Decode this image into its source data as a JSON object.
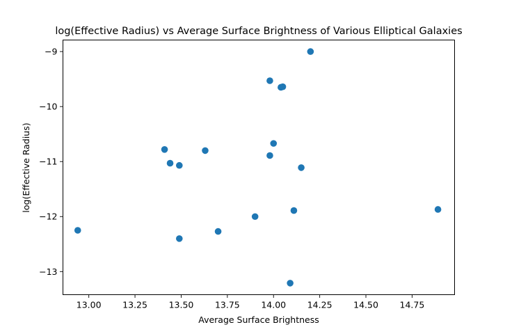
{
  "chart_data": {
    "type": "scatter",
    "title": "log(Effective Radius) vs Average Surface Brightness of Various Elliptical Galaxies",
    "xlabel": "Average Surface Brightness",
    "ylabel": "log(Effective Radius)",
    "xlim": [
      12.86,
      14.98
    ],
    "ylim": [
      -13.42,
      -8.79
    ],
    "xticks": [
      13.0,
      13.25,
      13.5,
      13.75,
      14.0,
      14.25,
      14.5,
      14.75
    ],
    "xtick_labels": [
      "13.00",
      "13.25",
      "13.50",
      "13.75",
      "14.00",
      "14.25",
      "14.50",
      "14.75"
    ],
    "yticks": [
      -13,
      -12,
      -11,
      -10,
      -9
    ],
    "ytick_labels": [
      "−13",
      "−12",
      "−11",
      "−10",
      "−9"
    ],
    "grid": false,
    "marker_color": "#1f77b4",
    "x": [
      12.94,
      13.41,
      13.44,
      13.49,
      13.49,
      13.63,
      13.7,
      13.9,
      13.98,
      13.98,
      14.0,
      14.04,
      14.05,
      14.09,
      14.11,
      14.15,
      14.2,
      14.89
    ],
    "y": [
      -12.25,
      -10.78,
      -11.03,
      -11.07,
      -12.4,
      -10.8,
      -12.27,
      -12.0,
      -9.53,
      -10.89,
      -10.67,
      -9.65,
      -9.64,
      -13.21,
      -11.89,
      -11.11,
      -9.0,
      -11.87
    ]
  }
}
